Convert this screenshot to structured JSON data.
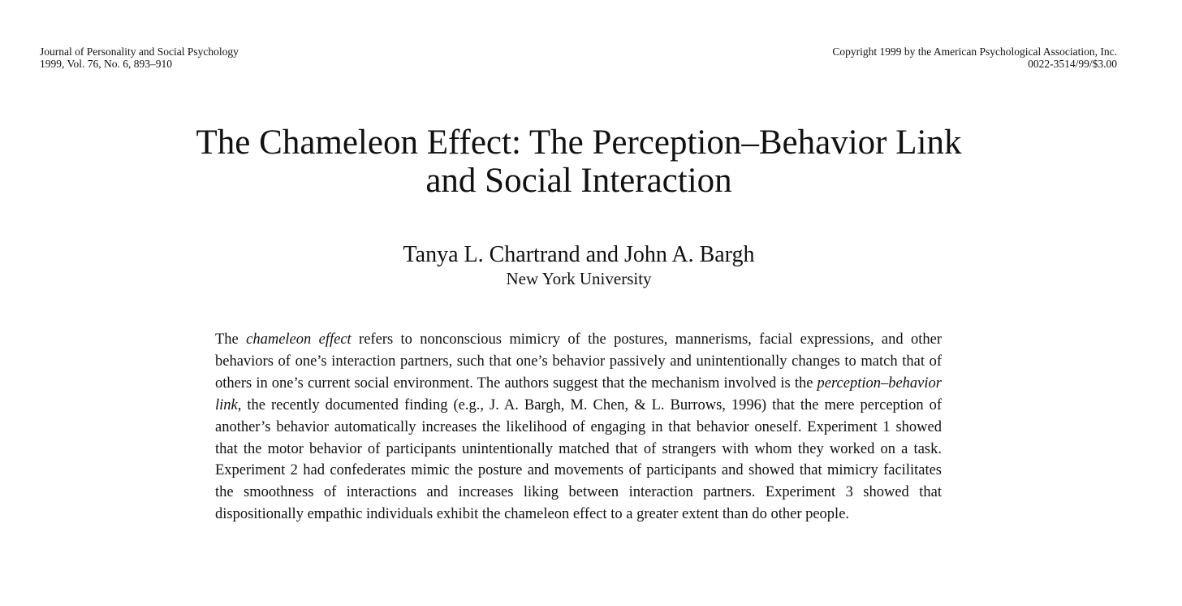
{
  "header": {
    "journal_line1": "Journal of Personality and Social Psychology",
    "journal_line2": "1999, Vol. 76, No. 6, 893–910",
    "copyright_line1": "Copyright 1999 by the American Psychological Association, Inc.",
    "copyright_line2": "0022-3514/99/$3.00"
  },
  "article": {
    "title_line1": "The Chameleon Effect: The Perception–Behavior Link",
    "title_line2": "and Social Interaction",
    "authors": "Tanya L. Chartrand and John A. Bargh",
    "affiliation": "New York University"
  },
  "abstract": {
    "p1": "The ",
    "term1": "chameleon effect",
    "p2": " refers to nonconscious mimicry of the postures, mannerisms, facial expressions, and other behaviors of one’s interaction partners, such that one’s behavior passively and unintentionally changes to match that of others in one’s current social environment. The authors suggest that the mechanism involved is the ",
    "term2": "perception–behavior link,",
    "p3": " the recently documented finding (e.g., J. A. Bargh, M. Chen, & L. Burrows, 1996) that the mere perception of another’s behavior automatically increases the likelihood of engaging in that behavior oneself. Experiment 1 showed that the motor behavior of participants unintentionally matched that of strangers with whom they worked on a task. Experiment 2 had confederates mimic the posture and movements of participants and showed that mimicry facilitates the smoothness of interactions and increases liking between interaction partners. Experiment 3 showed that dispositionally empathic individuals exhibit the chameleon effect to a greater extent than do other people."
  }
}
